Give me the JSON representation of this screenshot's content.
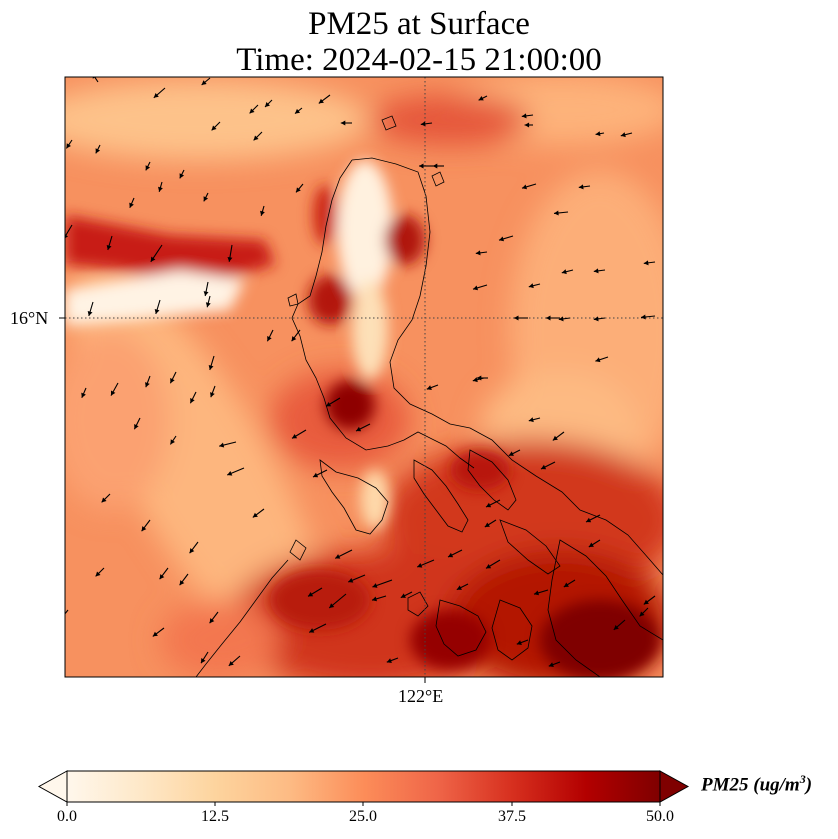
{
  "title": {
    "line1": "PM25 at Surface",
    "line2": "Time: 2024-02-15 21:00:00"
  },
  "axes": {
    "lat_tick": "16°N",
    "lon_tick": "122°E",
    "gridlines": "dotted"
  },
  "colorbar": {
    "label_main": "PM25 (ug/m",
    "label_exp": "3",
    "label_close": ")",
    "ticks": [
      "0.0",
      "12.5",
      "25.0",
      "37.5",
      "50.0"
    ],
    "range": [
      0,
      50
    ],
    "extend": "both",
    "colormap": "OrRd",
    "colors": [
      "#fff7ec",
      "#fee8c8",
      "#fdd49e",
      "#fdbb84",
      "#fc8d59",
      "#ef6548",
      "#d7301f",
      "#b30000",
      "#7f0000"
    ]
  },
  "map": {
    "features": [
      "coastlines",
      "wind-vectors",
      "pm25-field"
    ]
  }
}
